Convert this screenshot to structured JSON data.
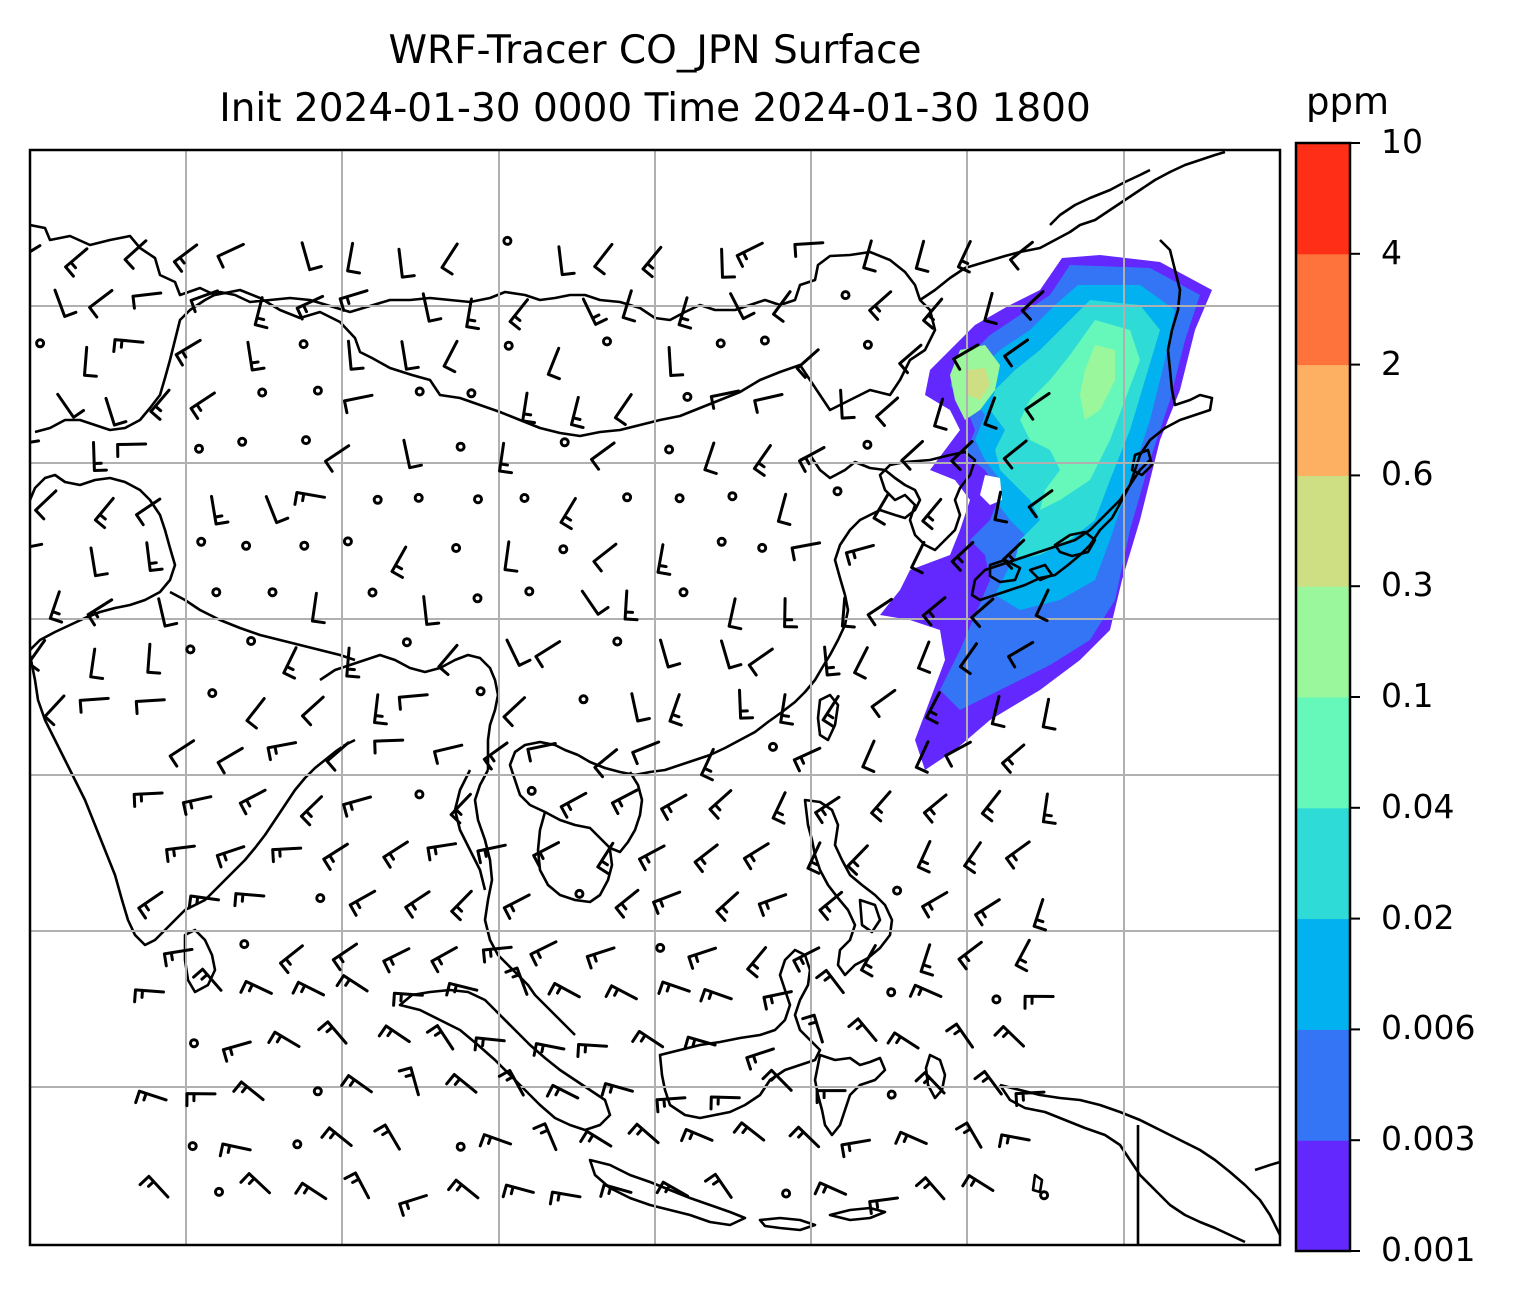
{
  "title": {
    "line1": "WRF-Tracer CO_JPN Surface",
    "line2": "Init 2024-01-30 0000 Time 2024-01-30 1800"
  },
  "colorbar": {
    "unit": "ppm",
    "levels": [
      "0.001",
      "0.003",
      "0.006",
      "0.02",
      "0.04",
      "0.1",
      "0.3",
      "0.6",
      "2",
      "4",
      "10"
    ],
    "colors": [
      "#6228fd",
      "#3475f6",
      "#02b1ef",
      "#2edbd6",
      "#66f8ba",
      "#9bf79b",
      "#cddf82",
      "#feb062",
      "#fe723c",
      "#fe2e17"
    ]
  },
  "map": {
    "gridlines": true,
    "region": "East and Southeast Asia",
    "overlay": "surface wind barbs",
    "plume_region": "Japan and adjacent seas"
  }
}
